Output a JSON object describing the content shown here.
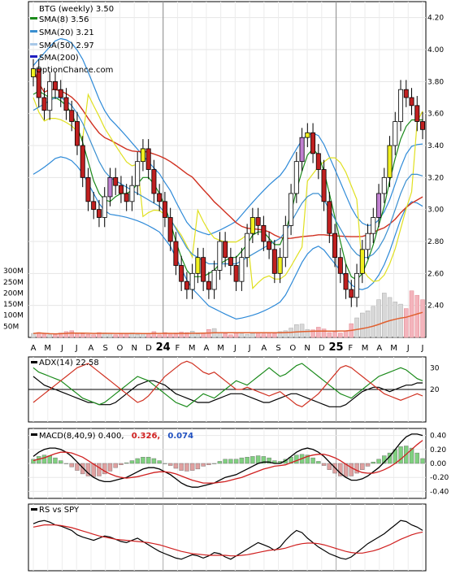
{
  "chart_data": [
    {
      "type": "candlestick",
      "title": "BTG (weekly) 3.50",
      "watermark": "OptionChance.com",
      "x_labels": [
        "A",
        "M",
        "J",
        "J",
        "A",
        "S",
        "O",
        "N",
        "D",
        "24",
        "F",
        "M",
        "A",
        "M",
        "J",
        "J",
        "A",
        "S",
        "O",
        "N",
        "D",
        "25",
        "F",
        "M",
        "A",
        "M",
        "J",
        "J"
      ],
      "ylim": [
        2.2,
        4.3
      ],
      "y_ticks": [
        "4.20",
        "4.00",
        "3.80",
        "3.60",
        "3.40",
        "3.20",
        "3.00",
        "2.80",
        "2.60",
        "2.40"
      ],
      "y_tick_values": [
        4.2,
        4.0,
        3.8,
        3.6,
        3.4,
        3.2,
        3.0,
        2.8,
        2.6,
        2.4
      ],
      "legend": [
        {
          "label": "SMA(8) 3.56",
          "color": "#1a8a1a"
        },
        {
          "label": "SMA(20) 3.21",
          "color": "#3a8fd0"
        },
        {
          "label": "SMA(50) 2.97",
          "color": "#a8c8e8"
        },
        {
          "label": "SMA(200)",
          "color": "#2020c0"
        }
      ],
      "close": [
        3.88,
        3.7,
        3.62,
        3.8,
        3.75,
        3.7,
        3.62,
        3.55,
        3.4,
        3.2,
        3.05,
        3.0,
        2.95,
        3.08,
        3.2,
        3.15,
        3.1,
        3.05,
        3.15,
        3.3,
        3.38,
        3.25,
        3.1,
        3.05,
        2.95,
        2.8,
        2.65,
        2.55,
        2.5,
        2.6,
        2.7,
        2.55,
        2.5,
        2.62,
        2.8,
        2.7,
        2.65,
        2.55,
        2.7,
        2.85,
        2.95,
        2.9,
        2.8,
        2.75,
        2.6,
        2.7,
        2.9,
        3.1,
        3.3,
        3.45,
        3.48,
        3.35,
        3.25,
        3.05,
        2.85,
        2.7,
        2.6,
        2.5,
        2.45,
        2.6,
        2.75,
        2.85,
        2.95,
        3.1,
        3.2,
        3.4,
        3.55,
        3.75,
        3.7,
        3.65,
        3.55,
        3.5
      ],
      "sma_series": [
        {
          "name": "SMA(8)",
          "color": "#1a8a1a",
          "values": [
            3.72,
            3.74,
            3.72,
            3.7,
            3.7,
            3.68,
            3.65,
            3.6,
            3.52,
            3.42,
            3.3,
            3.18,
            3.1,
            3.06,
            3.05,
            3.08,
            3.1,
            3.1,
            3.12,
            3.16,
            3.2,
            3.2,
            3.16,
            3.1,
            3.02,
            2.92,
            2.8,
            2.7,
            2.62,
            2.58,
            2.58,
            2.58,
            2.6,
            2.62,
            2.66,
            2.68,
            2.7,
            2.7,
            2.74,
            2.78,
            2.84,
            2.86,
            2.86,
            2.82,
            2.78,
            2.78,
            2.86,
            2.98,
            3.12,
            3.24,
            3.34,
            3.38,
            3.34,
            3.24,
            3.1,
            2.95,
            2.8,
            2.66,
            2.58,
            2.56,
            2.6,
            2.68,
            2.78,
            2.9,
            3.02,
            3.18,
            3.32,
            3.44,
            3.52,
            3.56,
            3.56,
            3.56
          ]
        },
        {
          "name": "SMA(20)",
          "color": "#3a8fd0",
          "values": [
            3.62,
            3.64,
            3.66,
            3.68,
            3.7,
            3.7,
            3.68,
            3.65,
            3.6,
            3.54,
            3.46,
            3.38,
            3.3,
            3.24,
            3.2,
            3.18,
            3.16,
            3.14,
            3.12,
            3.1,
            3.08,
            3.06,
            3.04,
            3.02,
            2.98,
            2.94,
            2.88,
            2.82,
            2.76,
            2.72,
            2.7,
            2.68,
            2.66,
            2.66,
            2.66,
            2.66,
            2.66,
            2.66,
            2.68,
            2.7,
            2.72,
            2.74,
            2.76,
            2.78,
            2.8,
            2.82,
            2.86,
            2.92,
            2.98,
            3.04,
            3.08,
            3.1,
            3.1,
            3.06,
            3.0,
            2.94,
            2.88,
            2.82,
            2.76,
            2.72,
            2.7,
            2.7,
            2.72,
            2.76,
            2.82,
            2.9,
            3.0,
            3.1,
            3.18,
            3.22,
            3.22,
            3.21
          ]
        }
      ],
      "bollinger_color": "#2e8ad8",
      "envelope_color": "#e0e020",
      "long_ma_color": "#d03020"
    },
    {
      "type": "bar",
      "name": "volume",
      "y_ticks": [
        "300M",
        "250M",
        "200M",
        "150M",
        "100M",
        "50M"
      ],
      "y_tick_values": [
        300,
        250,
        200,
        150,
        100,
        50
      ],
      "ylim": [
        0,
        330
      ],
      "values": [
        18,
        22,
        15,
        12,
        14,
        20,
        26,
        30,
        18,
        16,
        14,
        12,
        22,
        20,
        18,
        12,
        16,
        18,
        20,
        14,
        16,
        18,
        26,
        12,
        22,
        18,
        20,
        24,
        22,
        28,
        16,
        20,
        36,
        40,
        22,
        18,
        12,
        20,
        16,
        14,
        18,
        22,
        16,
        20,
        18,
        26,
        30,
        42,
        58,
        60,
        36,
        34,
        46,
        38,
        22,
        24,
        20,
        28,
        62,
        88,
        110,
        120,
        140,
        170,
        200,
        180,
        160,
        150,
        130,
        210,
        190,
        170
      ],
      "volume_avg_color": "#e06030"
    },
    {
      "type": "line",
      "name": "ADX",
      "label": "ADX(14) 22.58",
      "y_ticks": [
        "30",
        "20"
      ],
      "y_tick_values": [
        30,
        20
      ],
      "ylim": [
        5,
        35
      ],
      "series": [
        {
          "name": "ADX",
          "color": "#000000",
          "values": [
            26,
            24,
            22,
            21,
            20,
            19,
            18,
            17,
            16,
            15,
            14,
            14,
            13,
            13,
            13,
            14,
            16,
            18,
            20,
            22,
            23,
            24,
            24,
            23,
            22,
            20,
            18,
            17,
            16,
            15,
            14,
            14,
            14,
            15,
            16,
            17,
            18,
            18,
            18,
            17,
            16,
            15,
            14,
            14,
            15,
            16,
            17,
            18,
            18,
            17,
            16,
            15,
            14,
            13,
            12,
            12,
            12,
            13,
            15,
            17,
            19,
            20,
            21,
            21,
            20,
            19,
            20,
            21,
            22,
            22,
            23,
            23
          ]
        },
        {
          "name": "+DI",
          "color": "#1a8a1a",
          "values": [
            30,
            28,
            27,
            26,
            25,
            24,
            22,
            20,
            18,
            16,
            15,
            14,
            13,
            14,
            16,
            18,
            20,
            22,
            24,
            26,
            25,
            24,
            22,
            20,
            18,
            16,
            14,
            13,
            12,
            14,
            16,
            18,
            17,
            16,
            18,
            20,
            22,
            24,
            23,
            22,
            24,
            26,
            28,
            30,
            28,
            26,
            27,
            29,
            31,
            32,
            30,
            28,
            26,
            24,
            22,
            20,
            18,
            17,
            16,
            18,
            20,
            22,
            24,
            26,
            27,
            28,
            29,
            30,
            29,
            27,
            25,
            24
          ]
        },
        {
          "name": "-DI",
          "color": "#d03020",
          "values": [
            14,
            16,
            18,
            20,
            22,
            24,
            26,
            28,
            30,
            31,
            32,
            30,
            28,
            26,
            24,
            22,
            20,
            18,
            16,
            14,
            15,
            17,
            20,
            23,
            26,
            28,
            30,
            32,
            33,
            32,
            30,
            28,
            27,
            28,
            26,
            24,
            22,
            20,
            20,
            21,
            20,
            19,
            18,
            17,
            18,
            19,
            17,
            15,
            13,
            12,
            14,
            16,
            18,
            21,
            24,
            27,
            30,
            31,
            30,
            28,
            26,
            24,
            22,
            20,
            18,
            17,
            16,
            15,
            16,
            17,
            18,
            17
          ]
        }
      ]
    },
    {
      "type": "line",
      "name": "MACD",
      "label": "MACD(8,40,9) 0.400,",
      "signal_label": "0.326,",
      "hist_label": "0.074",
      "signal_color": "#d02020",
      "hist_color": "#2050c0",
      "y_ticks": [
        "0.40",
        "0.20",
        "0.00",
        "-0.20",
        "-0.40"
      ],
      "y_tick_values": [
        0.4,
        0.2,
        0.0,
        -0.2,
        -0.4
      ],
      "ylim": [
        -0.5,
        0.5
      ],
      "series": [
        {
          "name": "MACD",
          "color": "#000000",
          "values": [
            0.1,
            0.16,
            0.2,
            0.22,
            0.22,
            0.2,
            0.16,
            0.1,
            0.02,
            -0.06,
            -0.14,
            -0.2,
            -0.24,
            -0.26,
            -0.26,
            -0.24,
            -0.22,
            -0.2,
            -0.16,
            -0.12,
            -0.08,
            -0.06,
            -0.06,
            -0.08,
            -0.12,
            -0.16,
            -0.22,
            -0.28,
            -0.32,
            -0.34,
            -0.34,
            -0.32,
            -0.3,
            -0.28,
            -0.24,
            -0.2,
            -0.18,
            -0.16,
            -0.12,
            -0.08,
            -0.04,
            0.0,
            0.02,
            0.02,
            0.0,
            0.0,
            0.04,
            0.1,
            0.16,
            0.2,
            0.22,
            0.2,
            0.16,
            0.1,
            0.02,
            -0.06,
            -0.14,
            -0.2,
            -0.24,
            -0.24,
            -0.22,
            -0.18,
            -0.12,
            -0.06,
            0.02,
            0.1,
            0.2,
            0.3,
            0.38,
            0.42,
            0.42,
            0.4
          ]
        },
        {
          "name": "Signal",
          "color": "#d02020",
          "values": [
            0.04,
            0.06,
            0.08,
            0.11,
            0.14,
            0.16,
            0.16,
            0.15,
            0.12,
            0.09,
            0.04,
            -0.01,
            -0.06,
            -0.11,
            -0.15,
            -0.18,
            -0.2,
            -0.21,
            -0.2,
            -0.19,
            -0.17,
            -0.15,
            -0.13,
            -0.12,
            -0.12,
            -0.13,
            -0.15,
            -0.18,
            -0.21,
            -0.24,
            -0.26,
            -0.28,
            -0.28,
            -0.28,
            -0.27,
            -0.26,
            -0.24,
            -0.22,
            -0.2,
            -0.17,
            -0.14,
            -0.11,
            -0.08,
            -0.06,
            -0.04,
            -0.03,
            -0.02,
            0.01,
            0.04,
            0.07,
            0.1,
            0.12,
            0.13,
            0.13,
            0.11,
            0.08,
            0.04,
            -0.01,
            -0.06,
            -0.1,
            -0.13,
            -0.14,
            -0.14,
            -0.12,
            -0.09,
            -0.05,
            0.0,
            0.06,
            0.13,
            0.2,
            0.27,
            0.33
          ]
        }
      ],
      "hist_up_color": "#80d080",
      "hist_down_color": "#e0a0a0"
    },
    {
      "type": "line",
      "name": "RS",
      "label": "RS vs SPY",
      "ylim": [
        0,
        1
      ],
      "series": [
        {
          "name": "RS",
          "color": "#000000",
          "values": [
            0.82,
            0.86,
            0.88,
            0.85,
            0.8,
            0.78,
            0.74,
            0.7,
            0.62,
            0.58,
            0.55,
            0.52,
            0.56,
            0.6,
            0.58,
            0.54,
            0.5,
            0.48,
            0.52,
            0.56,
            0.5,
            0.44,
            0.38,
            0.32,
            0.28,
            0.24,
            0.2,
            0.18,
            0.22,
            0.26,
            0.24,
            0.2,
            0.24,
            0.3,
            0.28,
            0.22,
            0.18,
            0.24,
            0.3,
            0.36,
            0.42,
            0.48,
            0.44,
            0.4,
            0.34,
            0.4,
            0.52,
            0.62,
            0.7,
            0.66,
            0.56,
            0.48,
            0.4,
            0.34,
            0.28,
            0.24,
            0.2,
            0.18,
            0.22,
            0.3,
            0.38,
            0.46,
            0.52,
            0.58,
            0.64,
            0.72,
            0.8,
            0.88,
            0.86,
            0.8,
            0.76,
            0.7
          ]
        },
        {
          "name": "RS MA",
          "color": "#d02020",
          "values": [
            0.76,
            0.78,
            0.8,
            0.8,
            0.8,
            0.79,
            0.77,
            0.75,
            0.72,
            0.69,
            0.66,
            0.63,
            0.6,
            0.58,
            0.56,
            0.54,
            0.53,
            0.52,
            0.51,
            0.5,
            0.49,
            0.48,
            0.46,
            0.44,
            0.41,
            0.38,
            0.35,
            0.32,
            0.3,
            0.28,
            0.27,
            0.26,
            0.25,
            0.25,
            0.25,
            0.25,
            0.24,
            0.24,
            0.25,
            0.26,
            0.28,
            0.3,
            0.32,
            0.34,
            0.35,
            0.36,
            0.38,
            0.41,
            0.44,
            0.46,
            0.47,
            0.47,
            0.46,
            0.44,
            0.41,
            0.38,
            0.35,
            0.32,
            0.3,
            0.29,
            0.29,
            0.31,
            0.33,
            0.36,
            0.4,
            0.44,
            0.49,
            0.54,
            0.58,
            0.62,
            0.65,
            0.67
          ]
        }
      ]
    }
  ]
}
